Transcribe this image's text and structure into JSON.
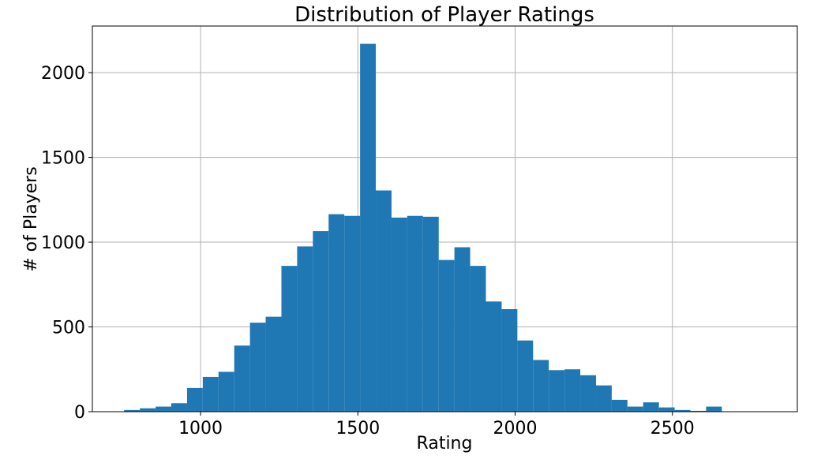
{
  "chart_data": {
    "type": "bar",
    "title": "Distribution of Player Ratings",
    "xlabel": "Rating",
    "ylabel": "# of Players",
    "xlim": [
      656,
      2897
    ],
    "ylim": [
      0,
      2275
    ],
    "xticks": [
      1000,
      1500,
      2000,
      2500
    ],
    "yticks": [
      0,
      500,
      1000,
      1500,
      2000
    ],
    "grid": true,
    "color": "#1f77b4",
    "bin_edges": [
      757,
      807,
      857,
      907,
      957,
      1007,
      1057,
      1107,
      1157,
      1207,
      1257,
      1307,
      1357,
      1407,
      1457,
      1507,
      1557,
      1607,
      1657,
      1707,
      1757,
      1807,
      1857,
      1907,
      1957,
      2007,
      2057,
      2107,
      2157,
      2207,
      2257,
      2307,
      2357,
      2407,
      2457,
      2507,
      2557,
      2607,
      2657
    ],
    "values": [
      10,
      20,
      30,
      50,
      140,
      205,
      235,
      390,
      525,
      560,
      860,
      975,
      1065,
      1165,
      1155,
      2170,
      1305,
      1145,
      1155,
      1150,
      895,
      970,
      860,
      650,
      605,
      420,
      305,
      245,
      250,
      215,
      155,
      70,
      30,
      55,
      25,
      10,
      5,
      30
    ]
  }
}
